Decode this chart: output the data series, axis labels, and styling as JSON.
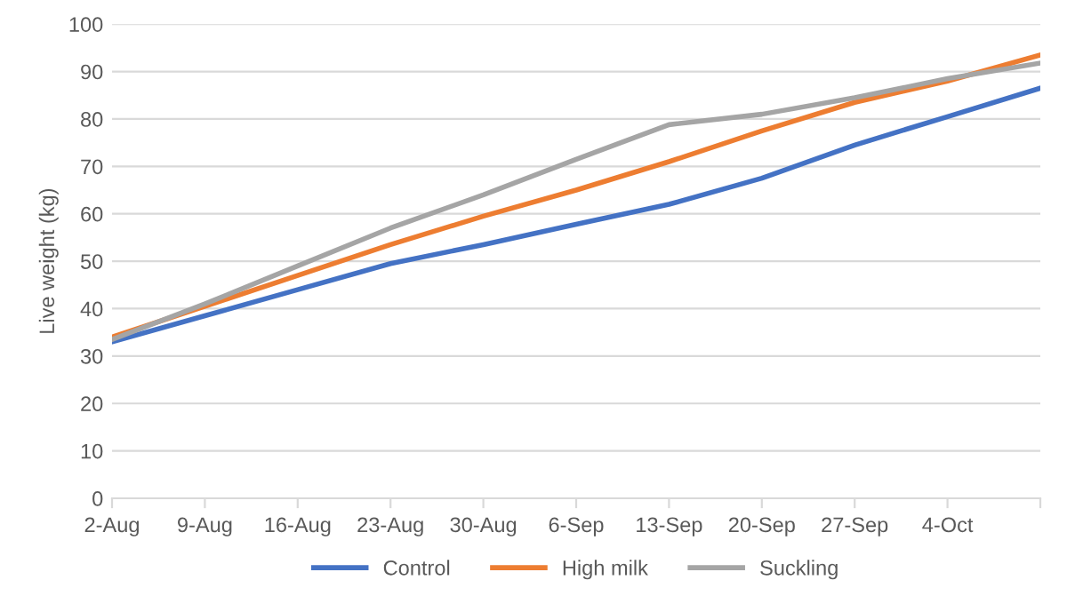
{
  "chart_data": {
    "type": "line",
    "ylabel": "Live weight (kg)",
    "categories": [
      "2-Aug",
      "9-Aug",
      "16-Aug",
      "23-Aug",
      "30-Aug",
      "6-Sep",
      "13-Sep",
      "20-Sep",
      "27-Sep",
      "4-Oct",
      null
    ],
    "series": [
      {
        "name": "Control",
        "color": "#4472c4",
        "values": [
          33,
          38.5,
          44,
          49.5,
          53.5,
          57.8,
          62,
          67.5,
          74.5,
          80.5,
          86.5
        ]
      },
      {
        "name": "High milk",
        "color": "#ed7d31",
        "values": [
          34,
          40.5,
          47,
          53.5,
          59.5,
          65,
          71,
          77.5,
          83.5,
          88,
          93.5
        ]
      },
      {
        "name": "Suckling",
        "color": "#a5a5a5",
        "values": [
          33.5,
          41,
          49,
          57,
          64,
          71.5,
          78.8,
          81,
          84.5,
          88.5,
          91.8
        ]
      }
    ],
    "ylim": [
      0,
      100
    ],
    "yticks": [
      0,
      10,
      20,
      30,
      40,
      50,
      60,
      70,
      80,
      90,
      100
    ],
    "grid": "y",
    "legend": "bottom",
    "marker": "none",
    "line_style": "solid"
  }
}
